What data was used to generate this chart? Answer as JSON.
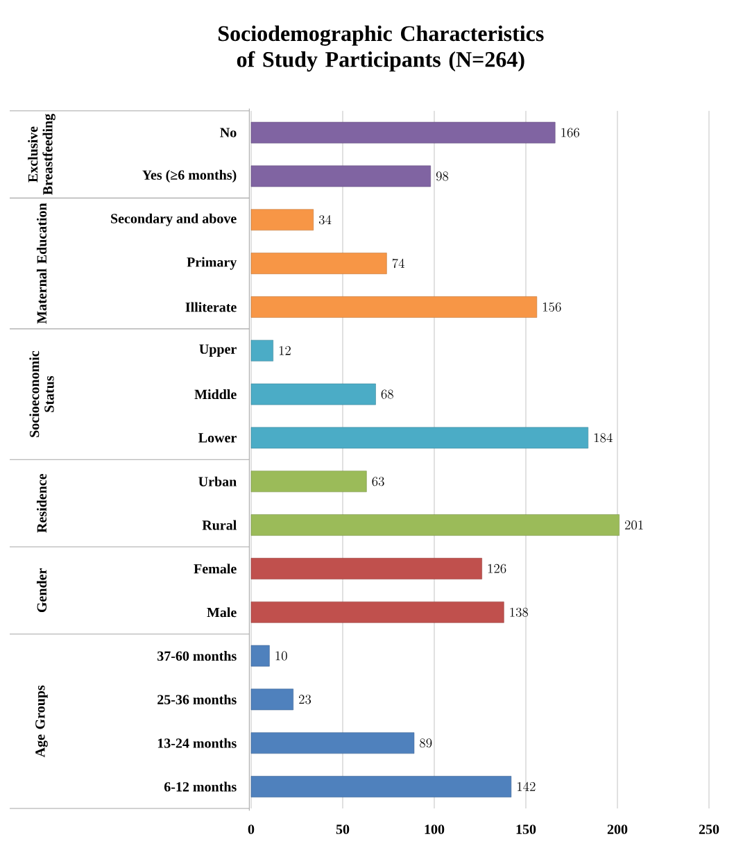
{
  "chart_data": {
    "type": "bar",
    "orientation": "horizontal",
    "title": "Sociodemographic Characteristics of Study Participants (N=264)",
    "categories": [
      "No",
      "Yes (≥6 months)",
      "Secondary and above",
      "Primary",
      "Illiterate",
      "Upper",
      "Middle",
      "Lower",
      "Urban",
      "Rural",
      "Female",
      "Male",
      "37-60 months",
      "25-36 months",
      "13-24 months",
      "6-12 months"
    ],
    "values": [
      166,
      98,
      34,
      74,
      156,
      12,
      68,
      184,
      63,
      201,
      126,
      138,
      10,
      23,
      89,
      142
    ],
    "colors": [
      "#8064a2",
      "#8064a2",
      "#f79646",
      "#f79646",
      "#f79646",
      "#4bacc6",
      "#4bacc6",
      "#4bacc6",
      "#9bbb59",
      "#9bbb59",
      "#c0504d",
      "#c0504d",
      "#4f81bd",
      "#4f81bd",
      "#4f81bd",
      "#4f81bd"
    ],
    "annotations": [
      "Exclusive Breastfeeding",
      "Maternal Education",
      "Socioeconomic Status",
      "Residence",
      "Gender",
      "Age Groups"
    ],
    "xlim": [
      0,
      250
    ],
    "xticks": [
      0,
      50,
      100,
      150,
      200,
      250
    ],
    "grid": "x",
    "data_labels": true
  }
}
